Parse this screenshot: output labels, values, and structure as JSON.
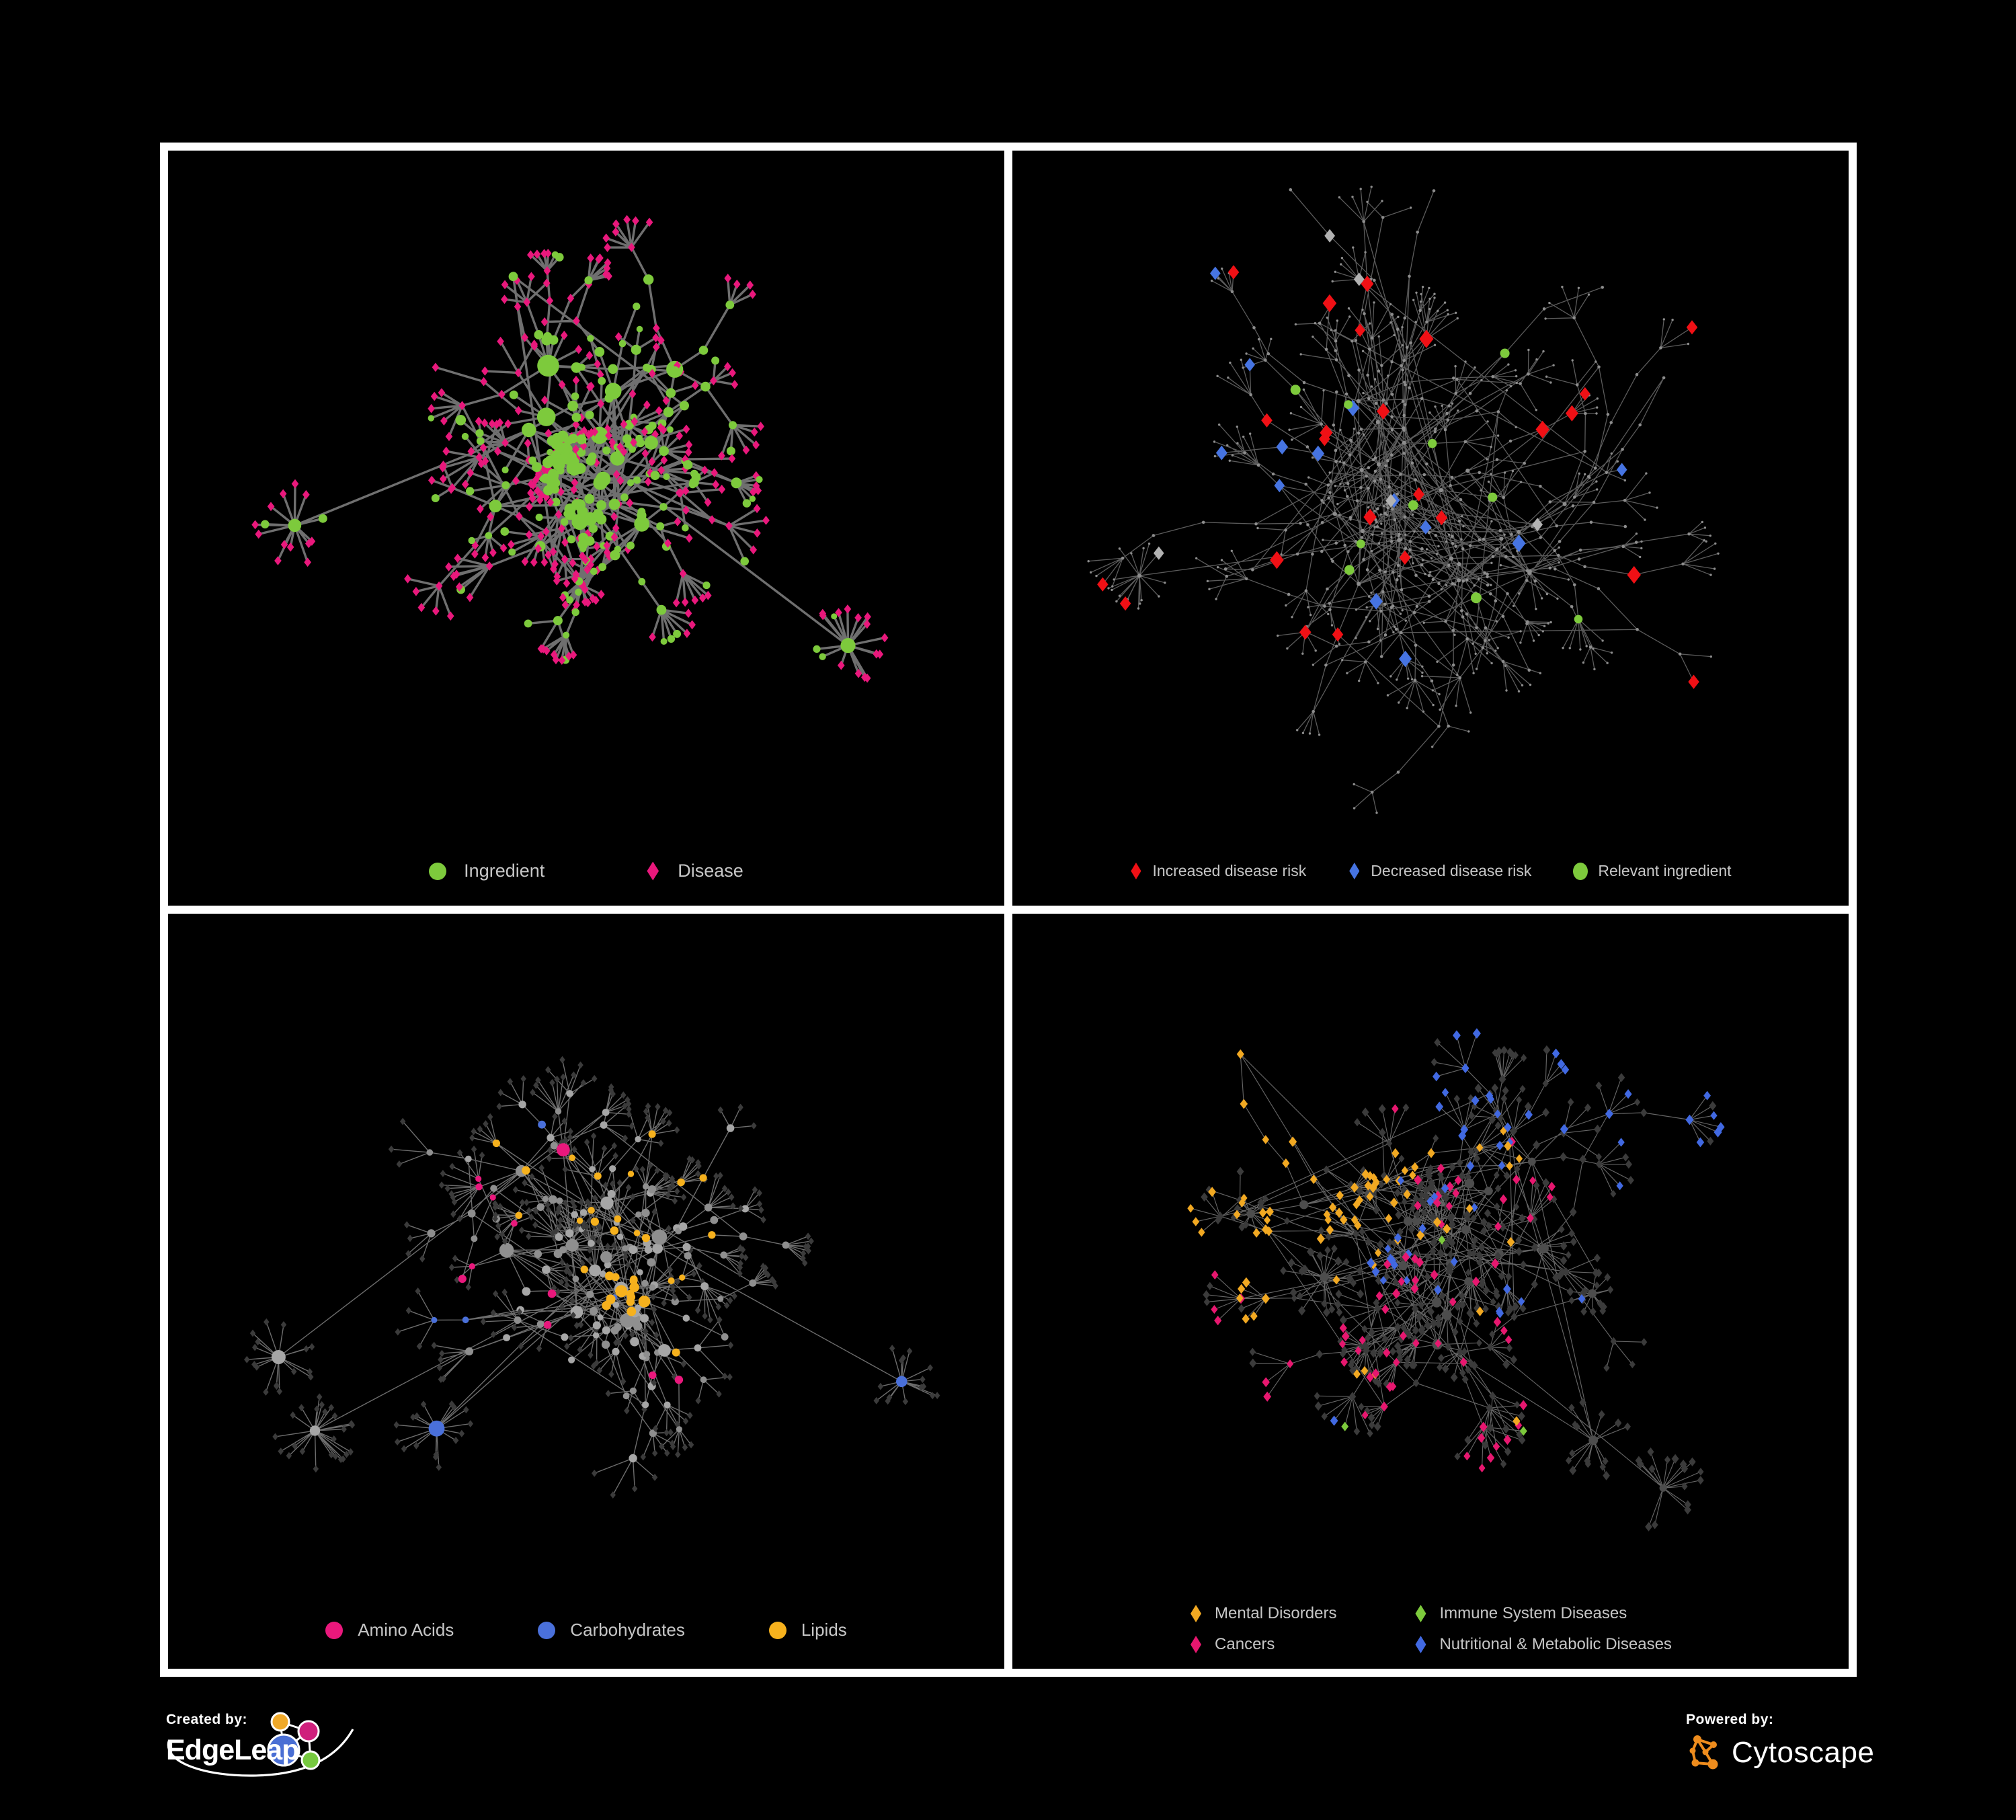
{
  "branding": {
    "created_by_label": "Created by:",
    "created_by_brand": "EdgeLeap",
    "powered_by_label": "Powered by:",
    "powered_by_brand": "Cytoscape"
  },
  "colors": {
    "background": "#000000",
    "panel_border": "#ffffff",
    "legend_text": "#c6c6c6",
    "green": "#7dca3c",
    "pink": "#e9187c",
    "red": "#f01015",
    "blue": "#4674e2",
    "royal_blue": "#4169e2",
    "orange": "#f2a922",
    "yellow": "#f6b11d",
    "gray_diamond": "#b2b2b2",
    "dot_gray": "#8d8d8d",
    "hub_gray": "#a6a6a6",
    "dark_node": "#3b3b3b"
  },
  "panels": [
    {
      "id": "ingredient-disease-network",
      "legend": [
        {
          "label": "Ingredient",
          "shape": "circle",
          "color": "#7dca3c"
        },
        {
          "label": "Disease",
          "shape": "diamond",
          "color": "#e9187c"
        }
      ],
      "network": {
        "style": "bipartite",
        "seed": 101,
        "clusters": 15,
        "sx": 0.2,
        "sy": 0.2,
        "br": [
          3,
          8
        ],
        "st": [
          1,
          3
        ],
        "len": [
          36,
          85
        ],
        "lv": [
          2,
          7
        ],
        "leafP": 0.75,
        "dand": 2,
        "dlv": [
          10,
          18
        ],
        "grapes": 3,
        "gn": [
          8,
          14
        ],
        "extra": 22,
        "edge": "#787878",
        "ew": 3.4,
        "eo": 0.92,
        "node_colors": {
          "ingredient": "#7dca3c",
          "disease": "#e9187c"
        }
      }
    },
    {
      "id": "disease-risk-network",
      "legend": [
        {
          "label": "Increased disease risk",
          "shape": "diamond",
          "color": "#f01015"
        },
        {
          "label": "Decreased disease risk",
          "shape": "diamond",
          "color": "#4674e2"
        },
        {
          "label": "Relevant ingredient",
          "shape": "circle",
          "color": "#7dca3c"
        }
      ],
      "network": {
        "style": "risk",
        "seed": 202,
        "clusters": 18,
        "sx": 0.25,
        "sy": 0.23,
        "br": [
          4,
          8
        ],
        "st": [
          2,
          5
        ],
        "len": [
          40,
          95
        ],
        "lv": [
          2,
          6
        ],
        "leafP": 0.7,
        "dand": 3,
        "dlv": [
          10,
          20
        ],
        "grapes": 0,
        "extra": 58,
        "edge": "#6b6b6b",
        "ew": 1.3,
        "eo": 0.85,
        "node_colors": {
          "increased": "#f01015",
          "decreased": "#4674e2",
          "neutral": "#b2b2b2",
          "ingredient": "#7dca3c",
          "other": "#8d8d8d"
        }
      }
    },
    {
      "id": "ingredient-classes-network",
      "legend": [
        {
          "label": "Amino Acids",
          "shape": "circle",
          "color": "#e9187c"
        },
        {
          "label": "Carbohydrates",
          "shape": "circle",
          "color": "#4a70da"
        },
        {
          "label": "Lipids",
          "shape": "circle",
          "color": "#f6b11d"
        }
      ],
      "network": {
        "style": "classes",
        "seed": 303,
        "clusters": 14,
        "sx": 0.22,
        "sy": 0.21,
        "br": [
          3,
          7
        ],
        "st": [
          1,
          3
        ],
        "len": [
          38,
          85
        ],
        "lv": [
          3,
          8
        ],
        "leafP": 0.8,
        "dand": 4,
        "dlv": [
          14,
          26
        ],
        "grapes": 2,
        "gn": [
          9,
          14
        ],
        "extra": 40,
        "edge": "#979797",
        "ew": 1.4,
        "eo": 0.72,
        "node_colors": {
          "amino_acids": "#e9187c",
          "carbohydrates": "#4a70da",
          "lipids": "#f6b11d",
          "other_ingredient": "#a6a6a6",
          "disease": "#3b3b3b"
        }
      }
    },
    {
      "id": "disease-categories-network",
      "legend": [
        {
          "label": "Mental Disorders",
          "shape": "diamond",
          "color": "#f2a922"
        },
        {
          "label": "Immune System Diseases",
          "shape": "diamond",
          "color": "#7dca3c"
        },
        {
          "label": "Cancers",
          "shape": "diamond",
          "color": "#e7176f"
        },
        {
          "label": "Nutritional & Metabolic Diseases",
          "shape": "diamond",
          "color": "#4169e2"
        }
      ],
      "network": {
        "style": "categories",
        "seed": 404,
        "clusters": 16,
        "sx": 0.24,
        "sy": 0.21,
        "br": [
          3,
          7
        ],
        "st": [
          1,
          4
        ],
        "len": [
          36,
          80
        ],
        "lv": [
          3,
          9
        ],
        "leafP": 0.8,
        "dand": 3,
        "dlv": [
          12,
          22
        ],
        "grapes": 2,
        "gn": [
          10,
          16
        ],
        "extra": 45,
        "edge": "#9b9b9b",
        "ew": 1.15,
        "eo": 0.65,
        "node_colors": {
          "mental": "#f2a922",
          "immune": "#7dca3c",
          "cancer": "#e7176f",
          "nutritional_metabolic": "#4169e2",
          "other_disease": "#3b3b3b"
        }
      }
    }
  ]
}
